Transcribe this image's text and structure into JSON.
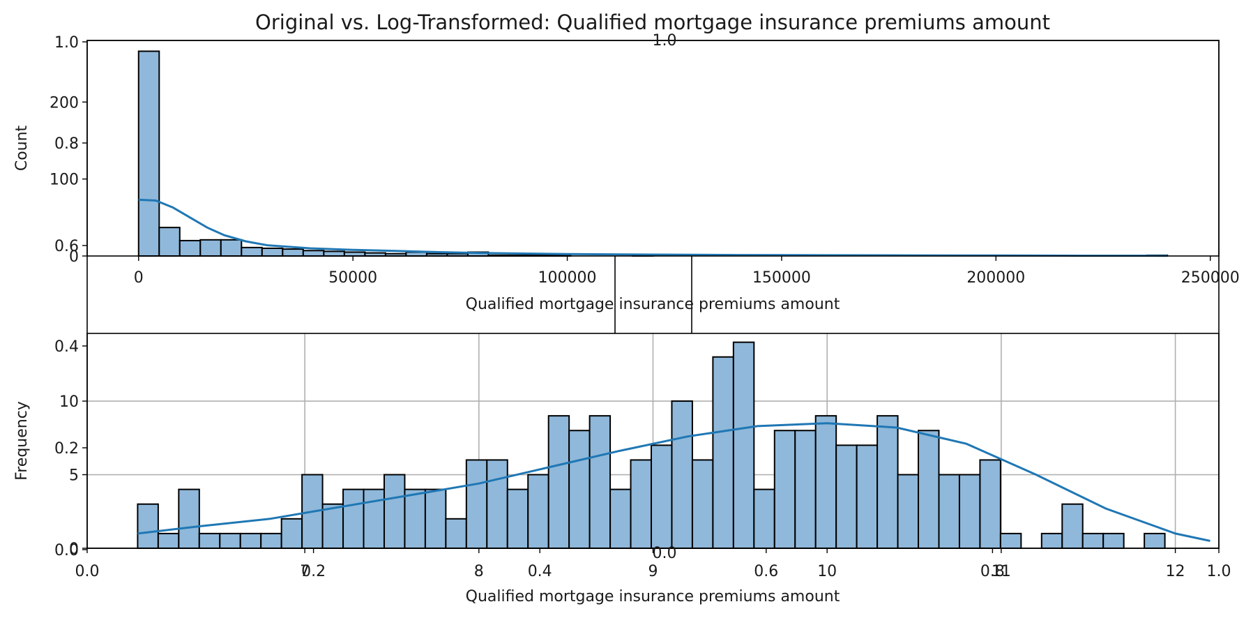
{
  "title": "Original vs. Log-Transformed: Qualified mortgage insurance premiums amount",
  "chart_data": [
    {
      "type": "histogram",
      "title": "Original vs. Log-Transformed: Qualified mortgage insurance premiums amount",
      "xlabel": "Qualified mortgage insurance premiums amount",
      "ylabel": "Count",
      "xlim": [
        -12000,
        252000
      ],
      "ylim": [
        0,
        280
      ],
      "xticks": [
        "0",
        "50000",
        "100000",
        "150000",
        "200000",
        "250000"
      ],
      "xtick_values": [
        0,
        50000,
        100000,
        150000,
        200000,
        250000
      ],
      "yticks": [
        "0",
        "100",
        "200"
      ],
      "ytick_values": [
        0,
        100,
        200
      ],
      "bin_width": 4800,
      "bin_start": 0,
      "counts": [
        266,
        37,
        20,
        21,
        21,
        11,
        10,
        9,
        7,
        6,
        5,
        4,
        3,
        5,
        3,
        3,
        5,
        1,
        1,
        1,
        1,
        0,
        0,
        0,
        1,
        0,
        0,
        0,
        0,
        0,
        0,
        0,
        0,
        0,
        0,
        0,
        0,
        0,
        0,
        0,
        0,
        0,
        0,
        0,
        0,
        0,
        0,
        0,
        0,
        1
      ],
      "kde_x": [
        0,
        4000,
        8000,
        12000,
        16000,
        20000,
        25000,
        30000,
        40000,
        50000,
        60000,
        70000,
        80000,
        100000,
        120000,
        140000,
        160000,
        180000,
        200000,
        220000,
        240000
      ],
      "kde_y": [
        73,
        72,
        63,
        50,
        37,
        27,
        19,
        14,
        10,
        8,
        6.5,
        5,
        3.8,
        2.5,
        1.8,
        1.3,
        1,
        0.8,
        0.6,
        0.4,
        0.3
      ],
      "grid": false
    },
    {
      "type": "histogram",
      "xlabel": "Qualified mortgage insurance premiums amount",
      "ylabel": "Frequency",
      "xlim": [
        5.75,
        12.25
      ],
      "ylim": [
        0,
        14.6
      ],
      "xticks": [
        "7",
        "8",
        "9",
        "10",
        "11",
        "12"
      ],
      "xtick_values": [
        7,
        8,
        9,
        10,
        11,
        12
      ],
      "yticks": [
        "0",
        "5",
        "10"
      ],
      "ytick_values": [
        0,
        5,
        10
      ],
      "bin_width": 0.118,
      "bin_start": 6.04,
      "counts": [
        3,
        1,
        4,
        1,
        1,
        1,
        1,
        2,
        5,
        3,
        4,
        4,
        5,
        4,
        4,
        2,
        6,
        6,
        4,
        5,
        9,
        8,
        9,
        4,
        6,
        7,
        10,
        6,
        13,
        14,
        4,
        8,
        8,
        9,
        7,
        7,
        9,
        5,
        8,
        5,
        5,
        6,
        1,
        0,
        1,
        3,
        1,
        1,
        0,
        1
      ],
      "kde_x": [
        6.04,
        6.4,
        6.8,
        7.2,
        7.6,
        8.0,
        8.4,
        8.8,
        9.2,
        9.6,
        10.0,
        10.4,
        10.8,
        11.2,
        11.6,
        12.0,
        12.2
      ],
      "kde_y": [
        1.0,
        1.5,
        2.0,
        2.8,
        3.6,
        4.4,
        5.5,
        6.6,
        7.6,
        8.3,
        8.5,
        8.2,
        7.1,
        5.0,
        2.7,
        1.0,
        0.5
      ],
      "grid": true
    }
  ],
  "overlay_axes": [
    {
      "xticks": [
        "0.0",
        "0.2",
        "0.4",
        "0.6",
        "0.8",
        "1.0"
      ],
      "yticks": [
        "0.0",
        "0.2",
        "0.4",
        "0.6",
        "0.8",
        "1.0"
      ],
      "top_label": "1.0"
    },
    {
      "xticks": [
        "0.0",
        "0.2",
        "0.4",
        "0.6",
        "0.8",
        "1.0"
      ],
      "yticks": [
        "0.0",
        "0.2",
        "0.4"
      ],
      "bottom_label": "0.0"
    }
  ]
}
